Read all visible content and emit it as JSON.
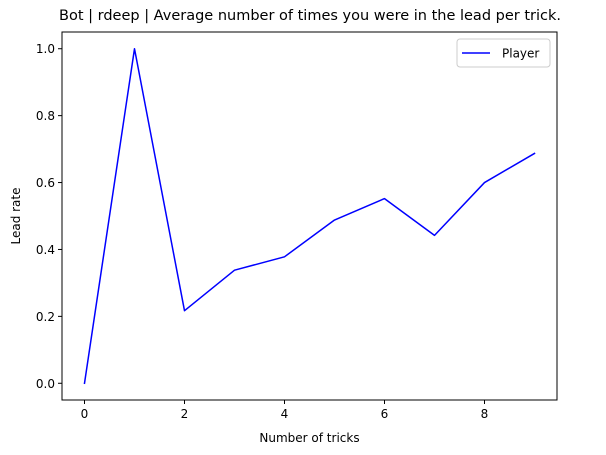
{
  "chart_data": {
    "type": "line",
    "title": "Bot | rdeep | Average number of times you were in the lead per trick.",
    "xlabel": "Number of tricks",
    "ylabel": "Lead rate",
    "xlim": [
      -0.45,
      9.45
    ],
    "ylim": [
      -0.05,
      1.05
    ],
    "xticks": [
      0,
      2,
      4,
      6,
      8
    ],
    "xtick_labels": [
      "0",
      "2",
      "4",
      "6",
      "8"
    ],
    "yticks": [
      0.0,
      0.2,
      0.4,
      0.6,
      0.8,
      1.0
    ],
    "ytick_labels": [
      "0.0",
      "0.2",
      "0.4",
      "0.6",
      "0.8",
      "1.0"
    ],
    "grid": false,
    "legend_position": "upper right",
    "series": [
      {
        "name": "Player",
        "color": "#0000ff",
        "x": [
          0,
          1,
          2,
          3,
          4,
          5,
          6,
          7,
          8,
          9
        ],
        "y": [
          0.0,
          1.0,
          0.217,
          0.338,
          0.378,
          0.488,
          0.552,
          0.442,
          0.6,
          0.687
        ]
      }
    ]
  }
}
